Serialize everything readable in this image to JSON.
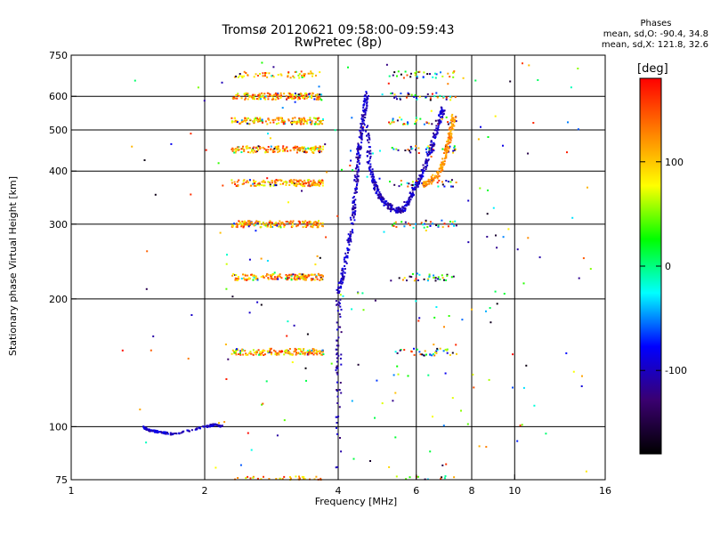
{
  "chart_data": {
    "type": "scatter",
    "title": "Tromsø 20120621 09:58:00-09:59:43",
    "subtitle": "RwPretec (8p)",
    "xlabel": "Frequency [MHz]",
    "ylabel": "Stationary phase Virtual Height [km]",
    "x_scale": "log",
    "y_scale": "log",
    "xlim": [
      1,
      16
    ],
    "ylim": [
      75,
      750
    ],
    "x_ticks": [
      1,
      2,
      4,
      6,
      8,
      10,
      16
    ],
    "x_tick_labels": [
      "1",
      "2",
      "4",
      "6",
      "8",
      "10",
      "16"
    ],
    "y_ticks": [
      75,
      100,
      200,
      300,
      400,
      500,
      600,
      750
    ],
    "y_tick_labels": [
      "75",
      "100",
      "200",
      "300",
      "400",
      "500",
      "600",
      "750"
    ],
    "grid": true,
    "x_grid": [
      2,
      4,
      6,
      8,
      10
    ],
    "y_grid": [
      100,
      200,
      300,
      400,
      500,
      600
    ],
    "colorbar": {
      "label": "[deg]",
      "range": [
        -180,
        180
      ],
      "ticks": [
        100,
        0,
        -100
      ],
      "tick_labels": [
        "100",
        "0",
        "-100"
      ],
      "colors": [
        "#000000",
        "#3a0070",
        "#0000ff",
        "#00ffff",
        "#00ff00",
        "#ffff00",
        "#ff8000",
        "#ff0000"
      ]
    },
    "phase_stats": {
      "heading": "Phases",
      "o_line": "mean, sd,O: -90.4, 34.8",
      "x_line": "mean, sd,X: 121.8, 32.6"
    },
    "traces": {
      "o_mode_lower": {
        "phase": -100,
        "points": [
          [
            4.0,
            205
          ],
          [
            4.1,
            225
          ],
          [
            4.2,
            260
          ],
          [
            4.3,
            300
          ],
          [
            4.35,
            340
          ],
          [
            4.4,
            390
          ],
          [
            4.45,
            440
          ],
          [
            4.5,
            480
          ],
          [
            4.55,
            520
          ],
          [
            4.6,
            570
          ],
          [
            4.65,
            610
          ]
        ]
      },
      "o_mode_upper": {
        "phase": -100,
        "points": [
          [
            4.65,
            520
          ],
          [
            4.7,
            420
          ],
          [
            4.8,
            380
          ],
          [
            4.9,
            360
          ],
          [
            5.0,
            345
          ],
          [
            5.2,
            330
          ],
          [
            5.4,
            322
          ],
          [
            5.6,
            325
          ],
          [
            5.8,
            345
          ],
          [
            6.0,
            370
          ],
          [
            6.2,
            395
          ],
          [
            6.4,
            430
          ],
          [
            6.6,
            480
          ],
          [
            6.8,
            540
          ],
          [
            6.9,
            560
          ]
        ]
      },
      "x_mode": {
        "phase": 120,
        "points": [
          [
            6.2,
            370
          ],
          [
            6.5,
            380
          ],
          [
            6.8,
            400
          ],
          [
            7.0,
            440
          ],
          [
            7.1,
            470
          ],
          [
            7.2,
            500
          ],
          [
            7.3,
            540
          ]
        ]
      },
      "low_trace": {
        "phase": -95,
        "points": [
          [
            1.45,
            100
          ],
          [
            1.5,
            98
          ],
          [
            1.6,
            97
          ],
          [
            1.7,
            96
          ],
          [
            2.0,
            100
          ],
          [
            2.1,
            101
          ],
          [
            2.2,
            100
          ]
        ]
      },
      "layer_heights": [
        75,
        150,
        225,
        300,
        375,
        450,
        525,
        600,
        675
      ]
    }
  }
}
